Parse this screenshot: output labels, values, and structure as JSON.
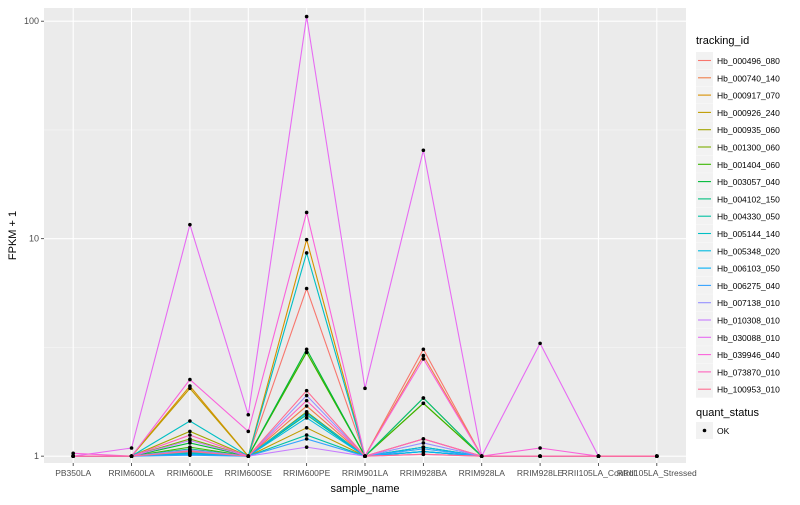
{
  "chart_data": {
    "type": "line",
    "xlabel": "sample_name",
    "ylabel": "FPKM + 1",
    "y_scale": "log10",
    "ylim": [
      0.93,
      115
    ],
    "y_ticks": [
      1,
      10,
      100
    ],
    "y_tick_labels": [
      "1",
      "10",
      "100"
    ],
    "categories": [
      "PB350LA",
      "RRIM600LA",
      "RRIM600LE",
      "RRIM600SE",
      "RRIM600PE",
      "RRIM901LA",
      "RRIM928BA",
      "RRIM928LA",
      "RRIM928LE",
      "RRII105LA_Control",
      "RRII105LA_Stressed"
    ],
    "legend": {
      "title": "tracking_id",
      "position": "right",
      "entries": [
        "Hb_000496_080",
        "Hb_000740_140",
        "Hb_000917_070",
        "Hb_000926_240",
        "Hb_000935_060",
        "Hb_001300_060",
        "Hb_001404_060",
        "Hb_003057_040",
        "Hb_004102_150",
        "Hb_004330_050",
        "Hb_005144_140",
        "Hb_005348_020",
        "Hb_006103_050",
        "Hb_006275_040",
        "Hb_007138_010",
        "Hb_010308_010",
        "Hb_030088_010",
        "Hb_039946_040",
        "Hb_073870_010",
        "Hb_100953_010"
      ]
    },
    "legend2": {
      "title": "quant_status",
      "entries": [
        "OK"
      ]
    },
    "colors": [
      "#F8766D",
      "#F07E4B",
      "#D89000",
      "#BF9C00",
      "#A3A500",
      "#7CAE00",
      "#39B600",
      "#00BA38",
      "#00BF7D",
      "#00C1A3",
      "#00BFC4",
      "#00BAE0",
      "#00B0F6",
      "#35A2FF",
      "#9590FF",
      "#C77CFF",
      "#E76BF3",
      "#FA62DB",
      "#FF62BC",
      "#FF6C91"
    ],
    "series": [
      {
        "name": "Hb_000496_080",
        "values": [
          1,
          1,
          1.06,
          1,
          5.9,
          1,
          3.1,
          1,
          1,
          1,
          1
        ]
      },
      {
        "name": "Hb_000740_140",
        "values": [
          1,
          1,
          1.05,
          1,
          1.7,
          1,
          2.9,
          1,
          1,
          1,
          1
        ]
      },
      {
        "name": "Hb_000917_070",
        "values": [
          1,
          1,
          2.1,
          1,
          9.9,
          1,
          1.2,
          1,
          1,
          1,
          1
        ]
      },
      {
        "name": "Hb_000926_240",
        "values": [
          1,
          1,
          2.05,
          1,
          1.35,
          1,
          1.1,
          1,
          1,
          1,
          1
        ]
      },
      {
        "name": "Hb_000935_060",
        "values": [
          1,
          1,
          1.3,
          1,
          3.0,
          1,
          1.75,
          1,
          1,
          1,
          1
        ]
      },
      {
        "name": "Hb_001300_060",
        "values": [
          1,
          1,
          1.2,
          1,
          1.6,
          1,
          1.85,
          1,
          1,
          1,
          1
        ]
      },
      {
        "name": "Hb_001404_060",
        "values": [
          1,
          1,
          1.1,
          1,
          3.0,
          1,
          1.75,
          1,
          1,
          1,
          1
        ]
      },
      {
        "name": "Hb_003057_040",
        "values": [
          1,
          1,
          1.15,
          1,
          3.1,
          1,
          1.05,
          1,
          1,
          1,
          1
        ]
      },
      {
        "name": "Hb_004102_150",
        "values": [
          1,
          1,
          1.08,
          1,
          1.55,
          1,
          1.85,
          1,
          1,
          1,
          1
        ]
      },
      {
        "name": "Hb_004330_050",
        "values": [
          1,
          1,
          1.03,
          1,
          1.25,
          1,
          1.1,
          1,
          1,
          1,
          1
        ]
      },
      {
        "name": "Hb_005144_140",
        "values": [
          1,
          1,
          1.45,
          1,
          8.6,
          1,
          1.05,
          1,
          1,
          1,
          1
        ]
      },
      {
        "name": "Hb_005348_020",
        "values": [
          1,
          1,
          1.04,
          1,
          1.5,
          1,
          1.1,
          1,
          1,
          1,
          1
        ]
      },
      {
        "name": "Hb_006103_050",
        "values": [
          1,
          1,
          1.02,
          1,
          1.58,
          1,
          1.05,
          1,
          1,
          1,
          1
        ]
      },
      {
        "name": "Hb_006275_040",
        "values": [
          1,
          1,
          1.01,
          1,
          1.2,
          1,
          1.08,
          1,
          1,
          1,
          1
        ]
      },
      {
        "name": "Hb_007138_010",
        "values": [
          1,
          1,
          1.07,
          1,
          1.9,
          1,
          1.15,
          1,
          1,
          1,
          1
        ]
      },
      {
        "name": "Hb_010308_010",
        "values": [
          1,
          1,
          1.18,
          1,
          1.1,
          1,
          1.02,
          1,
          1,
          1,
          1
        ]
      },
      {
        "name": "Hb_030088_010",
        "values": [
          1,
          1.09,
          11.6,
          1.55,
          105,
          2.05,
          25.5,
          1,
          3.3,
          1,
          1
        ]
      },
      {
        "name": "Hb_039946_040",
        "values": [
          1.03,
          1,
          2.25,
          1.3,
          13.2,
          1,
          2.8,
          1,
          1.09,
          1,
          1
        ]
      },
      {
        "name": "Hb_073870_010",
        "values": [
          1,
          1,
          1.25,
          1,
          1.8,
          1,
          1.2,
          1,
          1,
          1,
          1
        ]
      },
      {
        "name": "Hb_100953_010",
        "values": [
          1,
          1,
          1.05,
          1,
          2.0,
          1,
          1.02,
          1,
          1,
          1,
          1
        ]
      }
    ]
  }
}
